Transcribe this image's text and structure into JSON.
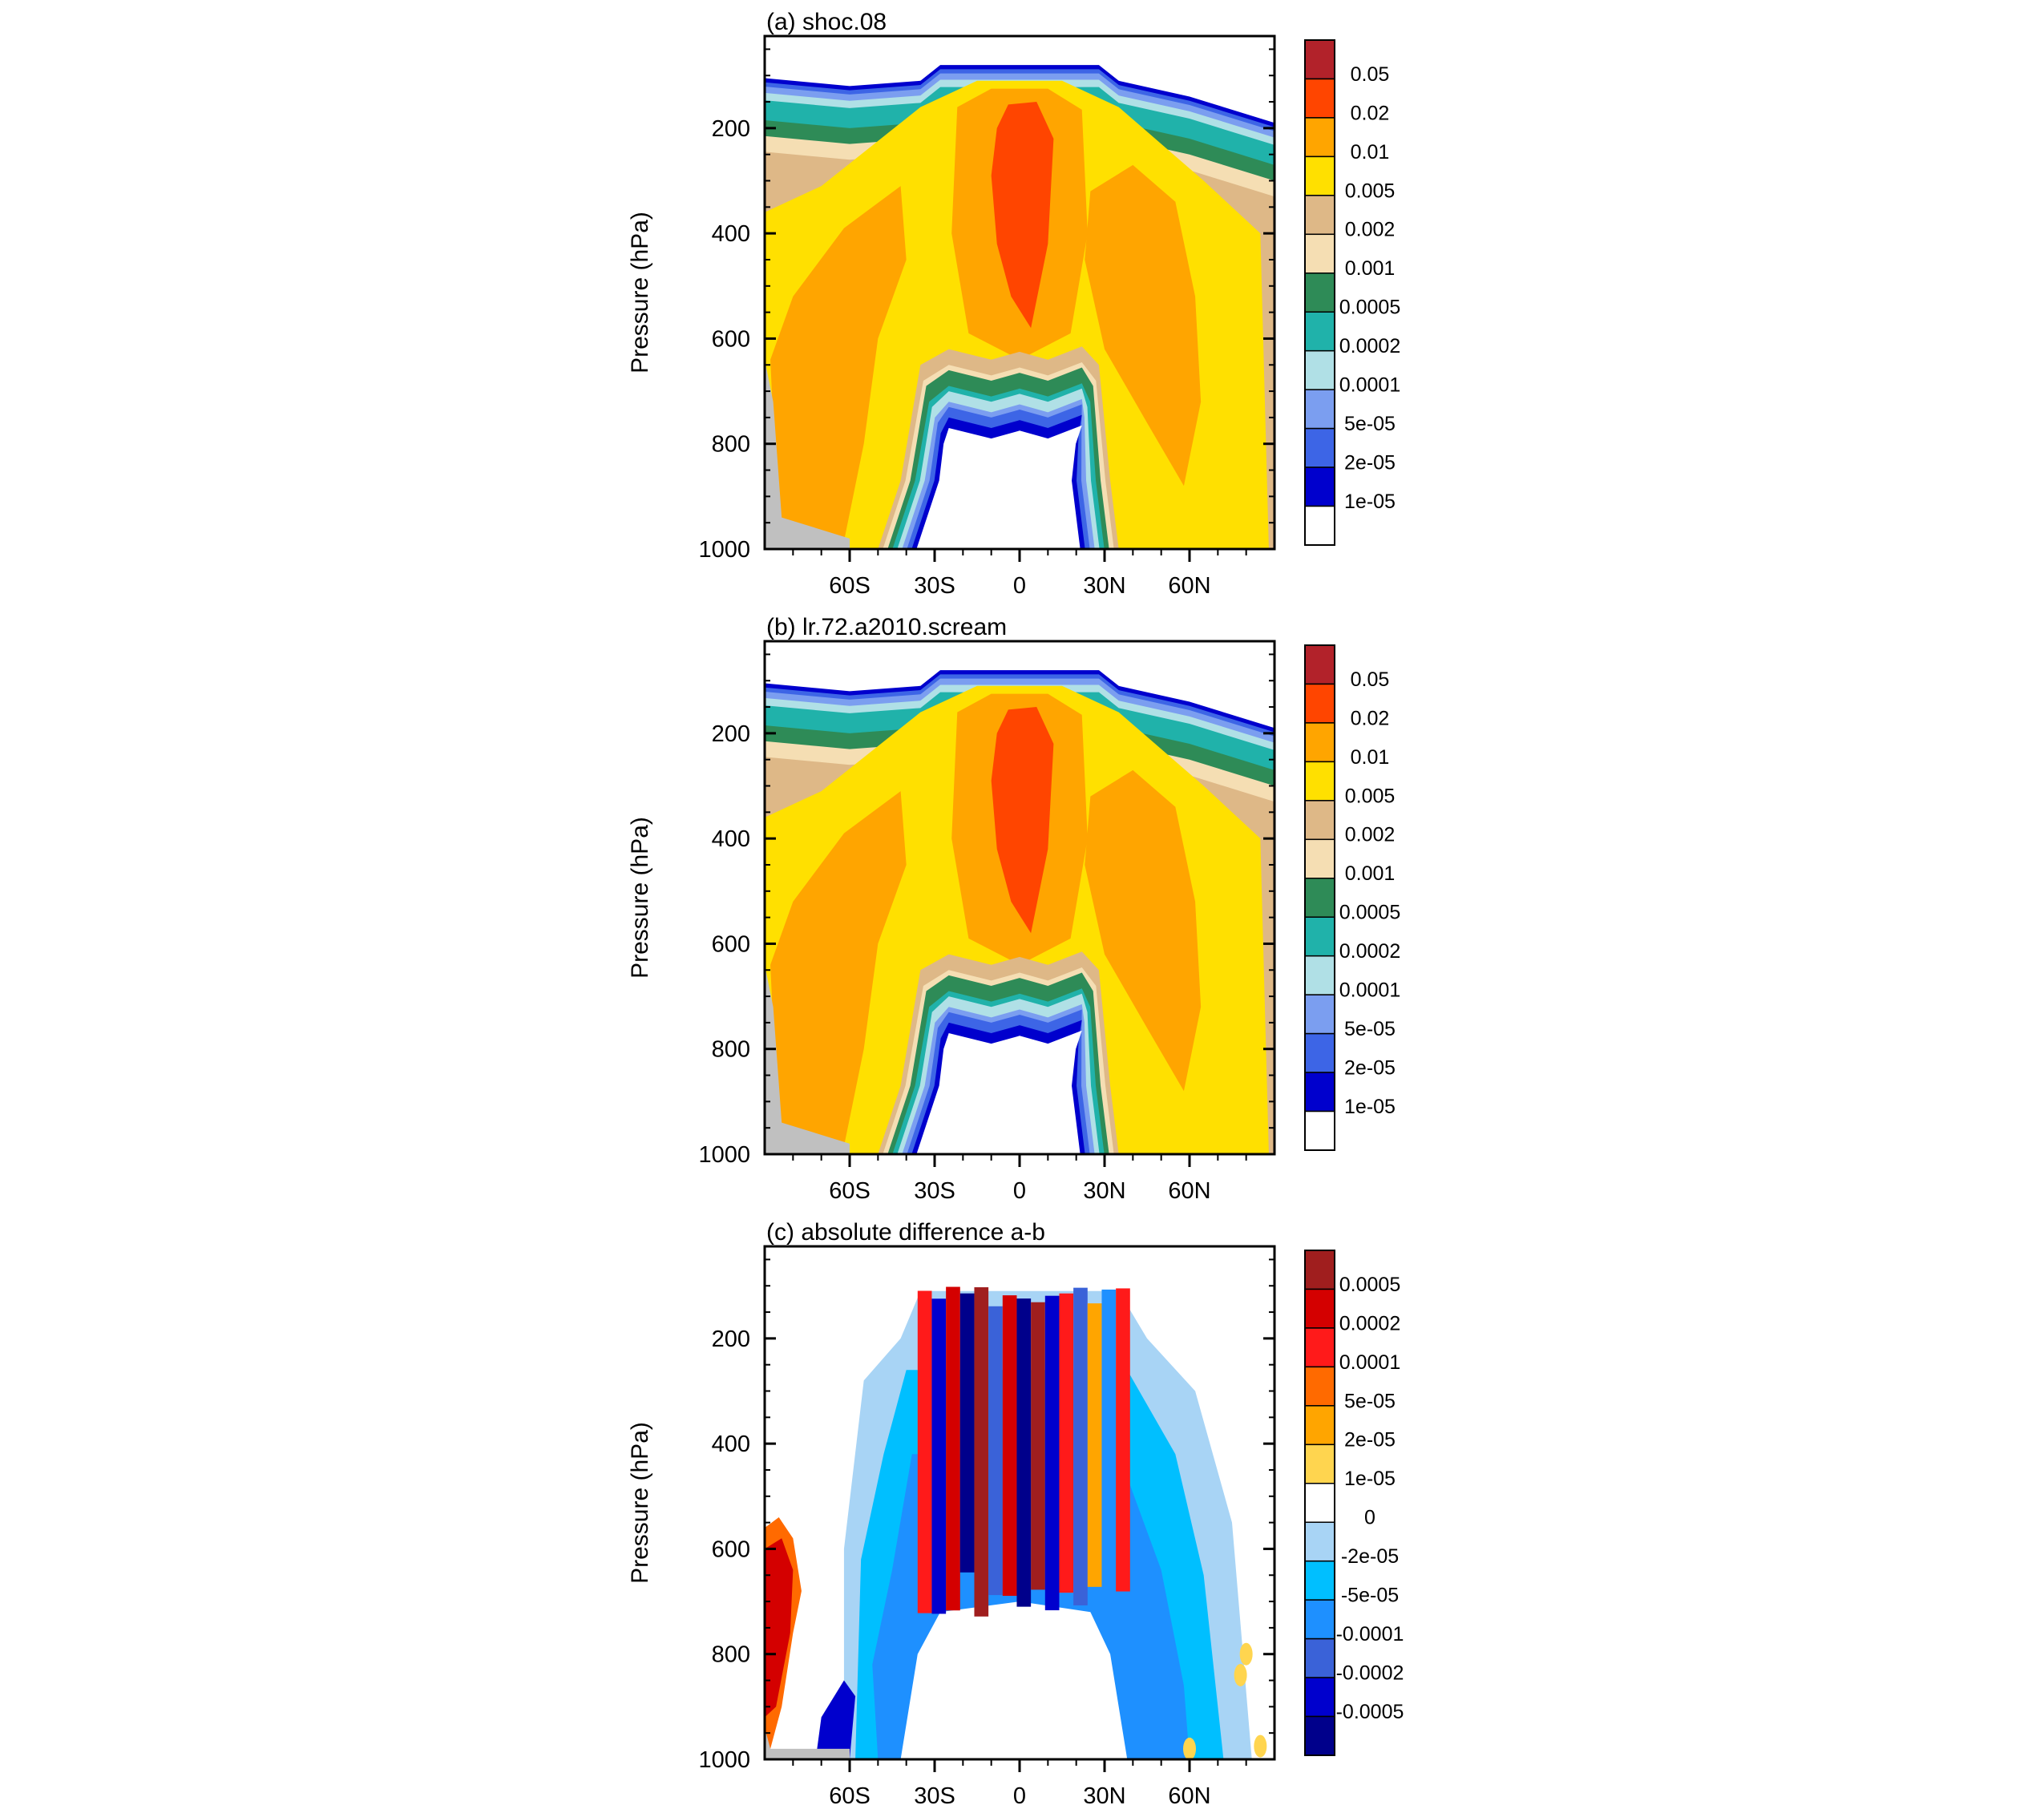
{
  "chart_data": [
    {
      "type": "heatmap",
      "title": "(a) shoc.08",
      "ylabel": "Pressure (hPa)",
      "xlabel": "",
      "x_ticks": [
        {
          "value": -60,
          "label": "60S"
        },
        {
          "value": -30,
          "label": "30S"
        },
        {
          "value": 0,
          "label": "0"
        },
        {
          "value": 30,
          "label": "30N"
        },
        {
          "value": 60,
          "label": "60N"
        }
      ],
      "y_ticks": [
        {
          "value": 200,
          "label": "200"
        },
        {
          "value": 400,
          "label": "400"
        },
        {
          "value": 600,
          "label": "600"
        },
        {
          "value": 800,
          "label": "800"
        },
        {
          "value": 1000,
          "label": "1000"
        }
      ],
      "xlim": [
        -90,
        90
      ],
      "ylim": [
        25,
        1000
      ],
      "colorbar": {
        "levels": [
          "0.05",
          "0.02",
          "0.01",
          "0.005",
          "0.002",
          "0.001",
          "0.0005",
          "0.0002",
          "0.0001",
          "5e-05",
          "2e-05",
          "1e-05"
        ],
        "colors": [
          "#B2222A",
          "#FF4500",
          "#FFA500",
          "#FFE000",
          "#DEB887",
          "#F5DEB3",
          "#2E8B57",
          "#20B2AA",
          "#B0E0E6",
          "#7B9EF0",
          "#3D65E6",
          "#0000CD",
          "#FFFFFF"
        ]
      },
      "field": "positive"
    },
    {
      "type": "heatmap",
      "title": "(b) lr.72.a2010.scream",
      "ylabel": "Pressure (hPa)",
      "xlabel": "",
      "x_ticks": [
        {
          "value": -60,
          "label": "60S"
        },
        {
          "value": -30,
          "label": "30S"
        },
        {
          "value": 0,
          "label": "0"
        },
        {
          "value": 30,
          "label": "30N"
        },
        {
          "value": 60,
          "label": "60N"
        }
      ],
      "y_ticks": [
        {
          "value": 200,
          "label": "200"
        },
        {
          "value": 400,
          "label": "400"
        },
        {
          "value": 600,
          "label": "600"
        },
        {
          "value": 800,
          "label": "800"
        },
        {
          "value": 1000,
          "label": "1000"
        }
      ],
      "xlim": [
        -90,
        90
      ],
      "ylim": [
        25,
        1000
      ],
      "colorbar": {
        "levels": [
          "0.05",
          "0.02",
          "0.01",
          "0.005",
          "0.002",
          "0.001",
          "0.0005",
          "0.0002",
          "0.0001",
          "5e-05",
          "2e-05",
          "1e-05"
        ],
        "colors": [
          "#B2222A",
          "#FF4500",
          "#FFA500",
          "#FFE000",
          "#DEB887",
          "#F5DEB3",
          "#2E8B57",
          "#20B2AA",
          "#B0E0E6",
          "#7B9EF0",
          "#3D65E6",
          "#0000CD",
          "#FFFFFF"
        ]
      },
      "field": "positive"
    },
    {
      "type": "heatmap",
      "title": "(c) absolute difference a-b",
      "ylabel": "Pressure (hPa)",
      "xlabel": "",
      "x_ticks": [
        {
          "value": -60,
          "label": "60S"
        },
        {
          "value": -30,
          "label": "30S"
        },
        {
          "value": 0,
          "label": "0"
        },
        {
          "value": 30,
          "label": "30N"
        },
        {
          "value": 60,
          "label": "60N"
        }
      ],
      "y_ticks": [
        {
          "value": 200,
          "label": "200"
        },
        {
          "value": 400,
          "label": "400"
        },
        {
          "value": 600,
          "label": "600"
        },
        {
          "value": 800,
          "label": "800"
        },
        {
          "value": 1000,
          "label": "1000"
        }
      ],
      "xlim": [
        -90,
        90
      ],
      "ylim": [
        25,
        1000
      ],
      "colorbar": {
        "levels": [
          "0.0005",
          "0.0002",
          "0.0001",
          "5e-05",
          "2e-05",
          "1e-05",
          "0",
          "-2e-05",
          "-5e-05",
          "-0.0001",
          "-0.0002",
          "-0.0005"
        ],
        "colors": [
          "#A01E1E",
          "#D40000",
          "#FF1A1A",
          "#FF6A00",
          "#FFA500",
          "#FFD54F",
          "#FFFFFF",
          "#A8D4F5",
          "#00BFFF",
          "#1E90FF",
          "#3A62D8",
          "#0000CD",
          "#00008B"
        ]
      },
      "field": "difference"
    }
  ]
}
